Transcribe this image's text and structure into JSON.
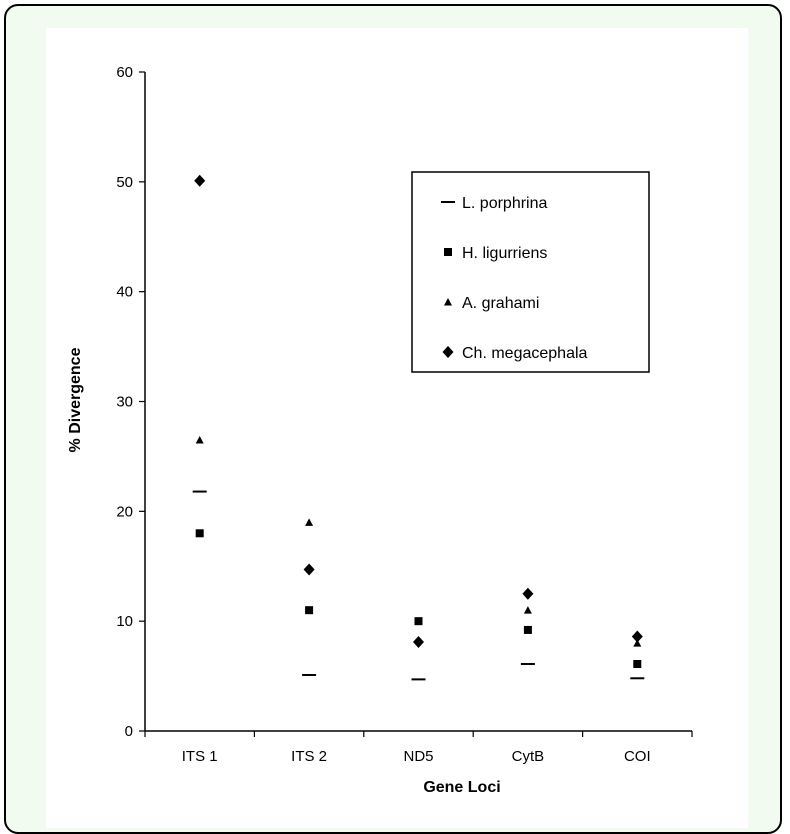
{
  "chart_data": {
    "type": "scatter",
    "title": "",
    "xlabel": "Gene Loci",
    "ylabel": "% Divergence",
    "ylim": [
      0,
      60
    ],
    "yticks": [
      0,
      10,
      20,
      30,
      40,
      50,
      60
    ],
    "categories": [
      "ITS 1",
      "ITS 2",
      "ND5",
      "CytB",
      "COI"
    ],
    "series": [
      {
        "name": "L. porphrina",
        "marker": "dash",
        "values": [
          21.8,
          5.1,
          4.7,
          6.1,
          4.8
        ]
      },
      {
        "name": "H. ligurriens",
        "marker": "square",
        "values": [
          18.0,
          11.0,
          10.0,
          9.2,
          6.1
        ]
      },
      {
        "name": "A. grahami",
        "marker": "triangle",
        "values": [
          26.5,
          19.0,
          null,
          11.0,
          8.0
        ]
      },
      {
        "name": "Ch. megacephala",
        "marker": "diamond",
        "values": [
          50.1,
          14.7,
          8.1,
          12.5,
          8.6
        ]
      }
    ],
    "legend_position": "upper-right",
    "grid": false,
    "colors": {
      "marker": "#000000",
      "frame_border": "#000000",
      "frame_bg": "#f2fbf0"
    }
  }
}
